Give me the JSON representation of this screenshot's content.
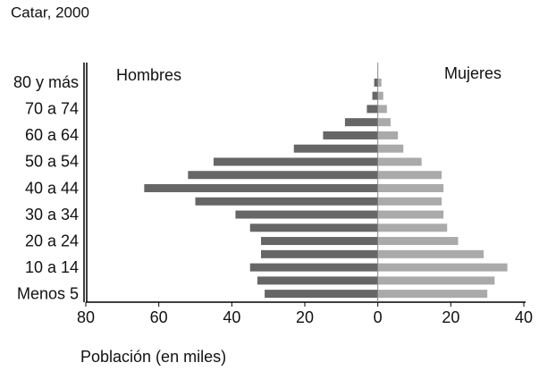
{
  "chart_data": {
    "type": "pyramid",
    "title": "Catar, 2000",
    "x_label": "Población (en miles)",
    "categories": [
      "Menos 5",
      null,
      "10 a 14",
      null,
      "20 a 24",
      null,
      "30 a 34",
      null,
      "40 a 44",
      null,
      "50 a 54",
      null,
      "60 a 64",
      null,
      "70 a 74",
      null,
      "80 y más"
    ],
    "series": [
      {
        "name": "Hombres",
        "color": "#666666",
        "values": [
          -31,
          -33,
          -35,
          -32,
          -32,
          -35,
          -39,
          -50,
          -64,
          -52,
          -45,
          -23,
          -15,
          -9,
          -3,
          -1.5,
          -1
        ]
      },
      {
        "name": "Mujeres",
        "color": "#aaaaaa",
        "values": [
          30,
          32,
          35.5,
          29,
          22,
          19,
          18,
          17.5,
          18,
          17.5,
          12,
          7,
          5.5,
          3.5,
          2.5,
          1.5,
          1
        ]
      }
    ],
    "xlim": [
      -80,
      40
    ],
    "xticks": [
      {
        "value": -80,
        "label": "80"
      },
      {
        "value": -60,
        "label": "60"
      },
      {
        "value": -40,
        "label": "40"
      },
      {
        "value": -20,
        "label": "20"
      },
      0,
      20,
      40
    ]
  }
}
